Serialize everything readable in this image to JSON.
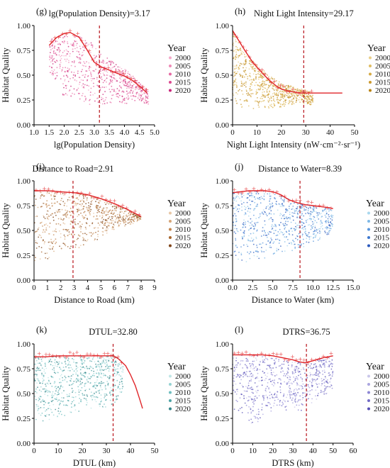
{
  "figure": {
    "panels": [
      {
        "id": "g",
        "panel_label": "(g)",
        "annotation": "lg(Population Density)=3.17",
        "xlabel": "lg(Population Density)",
        "ylabel": "Habitat Quality",
        "legend_title": "Year",
        "legend_years": [
          "2000",
          "2005",
          "2010",
          "2015",
          "2020"
        ]
      },
      {
        "id": "h",
        "panel_label": "(h)",
        "annotation": "Night Light Intensity=29.17",
        "xlabel": "Night Light Intensity (nW·cm⁻²·sr⁻¹)",
        "ylabel": "Habitat Quality",
        "legend_title": "Year",
        "legend_years": [
          "2000",
          "2005",
          "2010",
          "2015",
          "2020"
        ]
      },
      {
        "id": "i",
        "panel_label": "(i)",
        "annotation": "Distance to Road=2.91",
        "xlabel": "Distance to Road (km)",
        "ylabel": "Habitat Quality",
        "legend_title": "Year",
        "legend_years": [
          "2000",
          "2005",
          "2010",
          "2015",
          "2020"
        ]
      },
      {
        "id": "j",
        "panel_label": "(j)",
        "annotation": "Distance to Water=8.39",
        "xlabel": "Distance to Water (km)",
        "ylabel": "Habitat Quality",
        "legend_title": "Year",
        "legend_years": [
          "2000",
          "2005",
          "2010",
          "2015",
          "2020"
        ]
      },
      {
        "id": "k",
        "panel_label": "(k)",
        "annotation": "DTUL=32.80",
        "xlabel": "DTUL (km)",
        "ylabel": "Habitat Quality",
        "legend_title": "Year",
        "legend_years": [
          "2000",
          "2005",
          "2010",
          "2015",
          "2020"
        ]
      },
      {
        "id": "l",
        "panel_label": "(l)",
        "annotation": "DTRS=36.75",
        "xlabel": "DTRS (km)",
        "ylabel": "Habitat Quality",
        "legend_title": "Year",
        "legend_years": [
          "2000",
          "2005",
          "2010",
          "2015",
          "2020"
        ]
      }
    ]
  },
  "chart_data": [
    {
      "type": "scatter",
      "panel": "g",
      "title": "",
      "xlabel": "lg(Population Density)",
      "ylabel": "Habitat Quality",
      "xlim": [
        1.0,
        5.0
      ],
      "ylim": [
        0.0,
        1.0
      ],
      "xticks": [
        "1.0",
        "1.5",
        "2.0",
        "2.5",
        "3.0",
        "3.5",
        "4.0",
        "4.5",
        "5.0"
      ],
      "yticks": [
        "0.00",
        "0.25",
        "0.50",
        "0.75",
        "1.00"
      ],
      "threshold_x": 3.17,
      "series": [
        {
          "name": "2000",
          "color": "#f4a9c9"
        },
        {
          "name": "2005",
          "color": "#ee8ab6"
        },
        {
          "name": "2010",
          "color": "#e66aa3"
        },
        {
          "name": "2015",
          "color": "#dc4b90"
        },
        {
          "name": "2020",
          "color": "#c9257a"
        }
      ],
      "fit_curve": {
        "x": [
          1.5,
          1.75,
          2.0,
          2.2,
          2.5,
          2.75,
          3.0,
          3.25,
          3.5,
          3.75,
          4.0,
          4.25,
          4.5,
          4.75
        ],
        "y": [
          0.8,
          0.88,
          0.92,
          0.93,
          0.88,
          0.76,
          0.63,
          0.58,
          0.55,
          0.52,
          0.49,
          0.45,
          0.39,
          0.32
        ]
      },
      "bounds": {
        "x": [
          1.5,
          1.7,
          1.9,
          2.0,
          2.2,
          2.4,
          2.6,
          2.8,
          3.0,
          3.2,
          3.4,
          3.6,
          3.8,
          4.0,
          4.2,
          4.4,
          4.6,
          4.8
        ],
        "lo": [
          0.5,
          0.45,
          0.35,
          0.25,
          0.2,
          0.2,
          0.2,
          0.2,
          0.22,
          0.2,
          0.2,
          0.2,
          0.2,
          0.2,
          0.2,
          0.25,
          0.22,
          0.2
        ],
        "hi": [
          0.85,
          0.88,
          0.9,
          0.9,
          0.88,
          0.9,
          0.88,
          0.85,
          0.8,
          0.72,
          0.68,
          0.64,
          0.6,
          0.57,
          0.52,
          0.45,
          0.4,
          0.34
        ]
      },
      "legend": "right"
    },
    {
      "type": "scatter",
      "panel": "h",
      "title": "",
      "xlabel": "Night Light Intensity (nW·cm⁻²·sr⁻¹)",
      "ylabel": "Habitat Quality",
      "xlim": [
        0,
        50
      ],
      "ylim": [
        0.0,
        1.0
      ],
      "xticks": [
        "0",
        "10",
        "20",
        "30",
        "40",
        "50"
      ],
      "yticks": [
        "0.00",
        "0.25",
        "0.50",
        "0.75",
        "1.00"
      ],
      "threshold_x": 29.17,
      "series": [
        {
          "name": "2000",
          "color": "#e9cf8a"
        },
        {
          "name": "2005",
          "color": "#e0bd63"
        },
        {
          "name": "2010",
          "color": "#d6ab45"
        },
        {
          "name": "2015",
          "color": "#cc9a2f"
        },
        {
          "name": "2020",
          "color": "#b98416"
        }
      ],
      "fit_curve": {
        "x": [
          0,
          2,
          5,
          8,
          10,
          13,
          15,
          18,
          20,
          23,
          25,
          28,
          30,
          35,
          40,
          45
        ],
        "y": [
          0.95,
          0.87,
          0.75,
          0.64,
          0.58,
          0.5,
          0.45,
          0.39,
          0.36,
          0.34,
          0.33,
          0.32,
          0.32,
          0.32,
          0.32,
          0.32
        ]
      },
      "bounds": {
        "x": [
          0,
          2,
          5,
          8,
          10,
          13,
          15,
          18,
          20,
          23,
          25,
          28,
          30,
          33
        ],
        "lo": [
          0.2,
          0.15,
          0.15,
          0.15,
          0.15,
          0.15,
          0.15,
          0.18,
          0.18,
          0.2,
          0.2,
          0.22,
          0.2,
          0.2
        ],
        "hi": [
          0.95,
          0.85,
          0.72,
          0.65,
          0.6,
          0.55,
          0.5,
          0.45,
          0.42,
          0.4,
          0.38,
          0.36,
          0.35,
          0.32
        ]
      },
      "legend": "right"
    },
    {
      "type": "scatter",
      "panel": "i",
      "title": "",
      "xlabel": "Distance to Road (km)",
      "ylabel": "Habitat Quality",
      "xlim": [
        0,
        9
      ],
      "ylim": [
        0.0,
        1.0
      ],
      "xticks": [
        "0",
        "1",
        "2",
        "3",
        "4",
        "5",
        "6",
        "7",
        "8",
        "9"
      ],
      "yticks": [
        "0.00",
        "0.25",
        "0.50",
        "0.75",
        "1.00"
      ],
      "threshold_x": 2.91,
      "series": [
        {
          "name": "2000",
          "color": "#e8c7a6"
        },
        {
          "name": "2005",
          "color": "#d6a578"
        },
        {
          "name": "2010",
          "color": "#c2854f"
        },
        {
          "name": "2015",
          "color": "#a8672f"
        },
        {
          "name": "2020",
          "color": "#7f4418"
        }
      ],
      "fit_curve": {
        "x": [
          0,
          1,
          2,
          3,
          4,
          5,
          6,
          7,
          8
        ],
        "y": [
          0.9,
          0.9,
          0.89,
          0.88,
          0.86,
          0.82,
          0.77,
          0.71,
          0.64
        ]
      },
      "bounds": {
        "x": [
          0,
          0.3,
          1,
          2,
          3,
          4,
          5,
          6,
          7,
          8
        ],
        "lo": [
          0.15,
          0.15,
          0.2,
          0.25,
          0.3,
          0.35,
          0.42,
          0.5,
          0.55,
          0.6
        ],
        "hi": [
          0.88,
          0.9,
          0.9,
          0.89,
          0.88,
          0.86,
          0.82,
          0.77,
          0.71,
          0.64
        ]
      },
      "legend": "right"
    },
    {
      "type": "scatter",
      "panel": "j",
      "title": "",
      "xlabel": "Distance to Water (km)",
      "ylabel": "Habitat Quality",
      "xlim": [
        0.0,
        15.0
      ],
      "ylim": [
        0.0,
        1.0
      ],
      "xticks": [
        "0.0",
        "2.5",
        "5.0",
        "7.5",
        "10.0",
        "12.5",
        "15.0"
      ],
      "yticks": [
        "0.00",
        "0.25",
        "0.50",
        "0.75",
        "1.00"
      ],
      "threshold_x": 8.39,
      "series": [
        {
          "name": "2000",
          "color": "#a9d7ee"
        },
        {
          "name": "2005",
          "color": "#7fb9e6"
        },
        {
          "name": "2010",
          "color": "#5a96dc"
        },
        {
          "name": "2015",
          "color": "#3c77cf"
        },
        {
          "name": "2020",
          "color": "#2a58bd"
        }
      ],
      "fit_curve": {
        "x": [
          0,
          2,
          4,
          5,
          6,
          7,
          8,
          9,
          10,
          11,
          12,
          12.5
        ],
        "y": [
          0.88,
          0.9,
          0.9,
          0.89,
          0.86,
          0.81,
          0.78,
          0.76,
          0.75,
          0.74,
          0.73,
          0.72
        ]
      },
      "bounds": {
        "x": [
          0,
          1,
          2,
          4,
          6,
          8,
          10,
          11,
          12,
          12.5
        ],
        "lo": [
          0.15,
          0.18,
          0.18,
          0.2,
          0.25,
          0.3,
          0.35,
          0.4,
          0.45,
          0.5
        ],
        "hi": [
          0.88,
          0.9,
          0.9,
          0.9,
          0.86,
          0.78,
          0.75,
          0.74,
          0.73,
          0.72
        ]
      },
      "legend": "right"
    },
    {
      "type": "scatter",
      "panel": "k",
      "title": "",
      "xlabel": "DTUL (km)",
      "ylabel": "Habitat Quality",
      "xlim": [
        0,
        50
      ],
      "ylim": [
        0.0,
        1.0
      ],
      "xticks": [
        "0",
        "10",
        "20",
        "30",
        "40",
        "50"
      ],
      "yticks": [
        "0.00",
        "0.25",
        "0.50",
        "0.75",
        "1.00"
      ],
      "threshold_x": 32.8,
      "series": [
        {
          "name": "2000",
          "color": "#bfe6e6"
        },
        {
          "name": "2005",
          "color": "#96d3d3"
        },
        {
          "name": "2010",
          "color": "#6fbebf"
        },
        {
          "name": "2015",
          "color": "#4ea4a6"
        },
        {
          "name": "2020",
          "color": "#34868a"
        }
      ],
      "fit_curve": {
        "x": [
          0,
          5,
          10,
          15,
          20,
          25,
          30,
          33,
          35,
          38,
          40,
          42,
          44,
          45
        ],
        "y": [
          0.87,
          0.87,
          0.88,
          0.88,
          0.88,
          0.88,
          0.88,
          0.88,
          0.85,
          0.78,
          0.69,
          0.58,
          0.43,
          0.35
        ]
      },
      "bounds": {
        "x": [
          0,
          2,
          5,
          10,
          15,
          20,
          25,
          30,
          33,
          35,
          37
        ],
        "lo": [
          0.15,
          0.18,
          0.22,
          0.25,
          0.3,
          0.32,
          0.35,
          0.35,
          0.35,
          0.4,
          0.5
        ],
        "hi": [
          0.87,
          0.87,
          0.87,
          0.88,
          0.88,
          0.88,
          0.88,
          0.88,
          0.88,
          0.86,
          0.8
        ]
      },
      "legend": "right"
    },
    {
      "type": "scatter",
      "panel": "l",
      "title": "",
      "xlabel": "DTRS (km)",
      "ylabel": "Habitat Quality",
      "xlim": [
        0,
        60
      ],
      "ylim": [
        0.0,
        1.0
      ],
      "xticks": [
        "0",
        "10",
        "20",
        "30",
        "40",
        "50",
        "60"
      ],
      "yticks": [
        "0.00",
        "0.25",
        "0.50",
        "0.75",
        "1.00"
      ],
      "threshold_x": 36.75,
      "series": [
        {
          "name": "2000",
          "color": "#c9c6ea"
        },
        {
          "name": "2005",
          "color": "#aba6e0"
        },
        {
          "name": "2010",
          "color": "#8d87d4"
        },
        {
          "name": "2015",
          "color": "#726bc6"
        },
        {
          "name": "2020",
          "color": "#5750b5"
        }
      ],
      "fit_curve": {
        "x": [
          0,
          5,
          10,
          15,
          20,
          25,
          30,
          33,
          36,
          40,
          45,
          50
        ],
        "y": [
          0.89,
          0.89,
          0.89,
          0.89,
          0.88,
          0.86,
          0.84,
          0.82,
          0.81,
          0.83,
          0.86,
          0.88
        ]
      },
      "bounds": {
        "x": [
          0,
          3,
          6,
          10,
          15,
          20,
          25,
          30,
          35,
          40,
          45,
          50
        ],
        "lo": [
          0.35,
          0.3,
          0.22,
          0.18,
          0.25,
          0.3,
          0.3,
          0.32,
          0.3,
          0.4,
          0.45,
          0.55
        ],
        "hi": [
          0.89,
          0.89,
          0.89,
          0.89,
          0.88,
          0.86,
          0.84,
          0.82,
          0.81,
          0.83,
          0.86,
          0.88
        ]
      },
      "legend": "right"
    }
  ]
}
